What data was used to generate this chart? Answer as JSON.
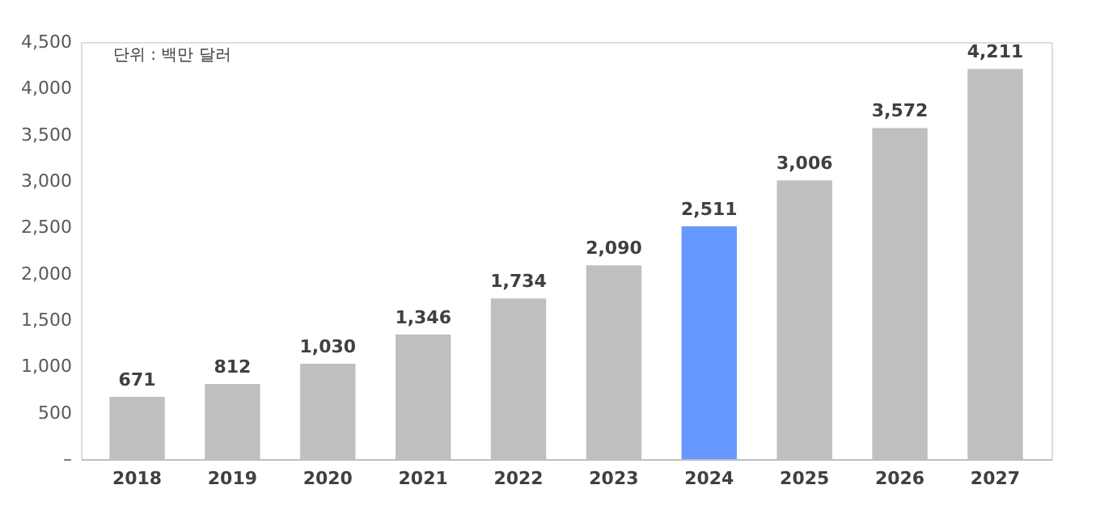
{
  "chart_data": {
    "type": "bar",
    "categories": [
      "2018",
      "2019",
      "2020",
      "2021",
      "2022",
      "2023",
      "2024",
      "2025",
      "2026",
      "2027"
    ],
    "values": [
      671,
      812,
      1030,
      1346,
      1734,
      2090,
      2511,
      3006,
      3572,
      4211
    ],
    "value_labels": [
      "671",
      "812",
      "1,030",
      "1,346",
      "1,734",
      "2,090",
      "2,511",
      "3,006",
      "3,572",
      "4,211"
    ],
    "colors": [
      "#bfbfbf",
      "#bfbfbf",
      "#bfbfbf",
      "#bfbfbf",
      "#bfbfbf",
      "#bfbfbf",
      "#6699ff",
      "#bfbfbf",
      "#bfbfbf",
      "#bfbfbf"
    ],
    "ylim": [
      0,
      4500
    ],
    "yticks": [
      {
        "value": 0,
        "label": "–"
      },
      {
        "value": 500,
        "label": "500"
      },
      {
        "value": 1000,
        "label": "1,000"
      },
      {
        "value": 1500,
        "label": "1,500"
      },
      {
        "value": 2000,
        "label": "2,000"
      },
      {
        "value": 2500,
        "label": "2,500"
      },
      {
        "value": 3000,
        "label": "3,000"
      },
      {
        "value": 3500,
        "label": "3,500"
      },
      {
        "value": 4000,
        "label": "4,000"
      },
      {
        "value": 4500,
        "label": "4,500"
      }
    ],
    "annotations": [
      "단위 : 백만 달러"
    ],
    "grid": false
  }
}
